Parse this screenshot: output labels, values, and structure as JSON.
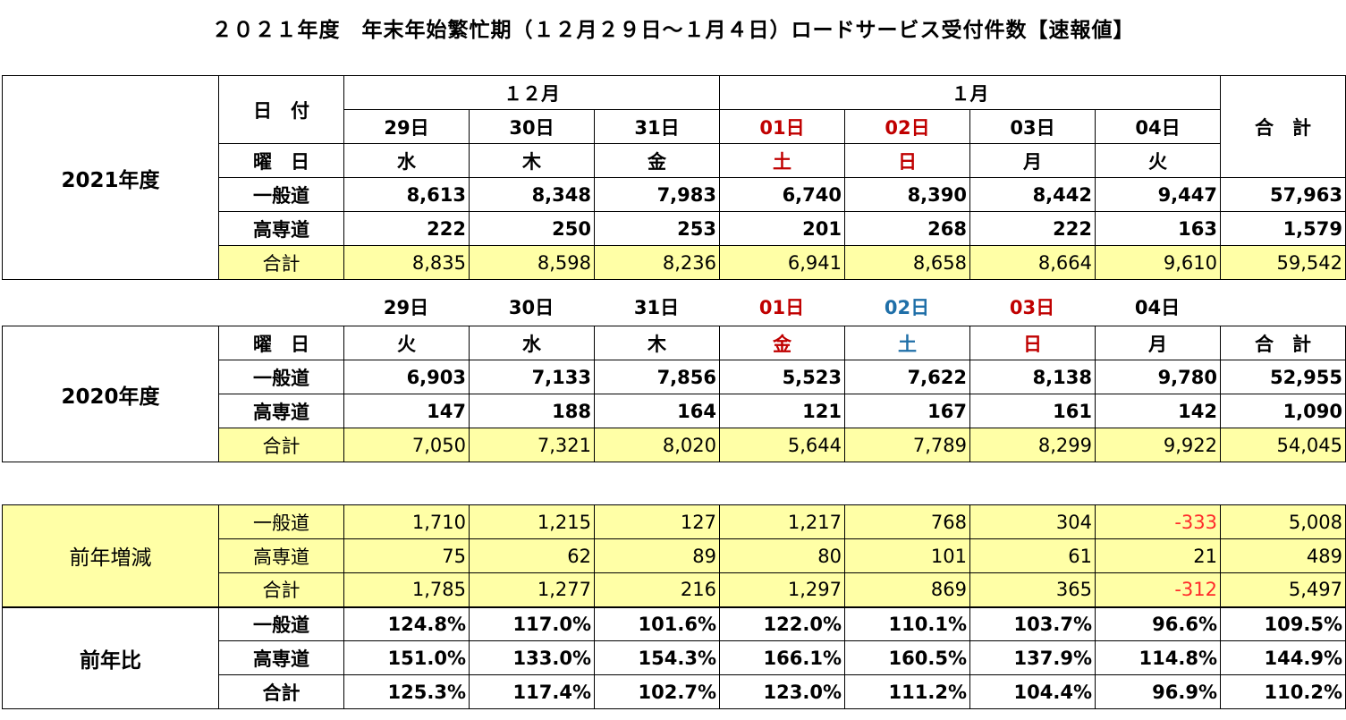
{
  "title": "２０２１年度　年末年始繁忙期（１２月２９日～１月４日）ロードサービス受付件数【速報値】",
  "colors": {
    "holiday_red": "#c00000",
    "saturday_blue": "#1f6fa8",
    "negative_red": "#ff2a2a",
    "highlight_yellow": "#ffffa6"
  },
  "labels": {
    "date": "日　付",
    "weekday": "曜　日",
    "general": "一般道",
    "highway": "高専道",
    "total": "合計",
    "grand_total": "合　計",
    "dec": "１２月",
    "jan": "１月"
  },
  "fy2021": {
    "label": "2021年度",
    "days": [
      "29日",
      "30日",
      "31日",
      "01日",
      "02日",
      "03日",
      "04日"
    ],
    "weekdays": [
      "水",
      "木",
      "金",
      "土",
      "日",
      "月",
      "火"
    ],
    "general": [
      "8,613",
      "8,348",
      "7,983",
      "6,740",
      "8,390",
      "8,442",
      "9,447",
      "57,963"
    ],
    "highway": [
      "222",
      "250",
      "253",
      "201",
      "268",
      "222",
      "163",
      "1,579"
    ],
    "total": [
      "8,835",
      "8,598",
      "8,236",
      "6,941",
      "8,658",
      "8,664",
      "9,610",
      "59,542"
    ]
  },
  "fy2020": {
    "label": "2020年度",
    "days": [
      "29日",
      "30日",
      "31日",
      "01日",
      "02日",
      "03日",
      "04日"
    ],
    "weekdays": [
      "火",
      "水",
      "木",
      "金",
      "土",
      "日",
      "月"
    ],
    "general": [
      "6,903",
      "7,133",
      "7,856",
      "5,523",
      "7,622",
      "8,138",
      "9,780",
      "52,955"
    ],
    "highway": [
      "147",
      "188",
      "164",
      "121",
      "167",
      "161",
      "142",
      "1,090"
    ],
    "total": [
      "7,050",
      "7,321",
      "8,020",
      "5,644",
      "7,789",
      "8,299",
      "9,922",
      "54,045"
    ]
  },
  "diff": {
    "label": "前年増減",
    "general": [
      "1,710",
      "1,215",
      "127",
      "1,217",
      "768",
      "304",
      "-333",
      "5,008"
    ],
    "highway": [
      "75",
      "62",
      "89",
      "80",
      "101",
      "61",
      "21",
      "489"
    ],
    "total": [
      "1,785",
      "1,277",
      "216",
      "1,297",
      "869",
      "365",
      "-312",
      "5,497"
    ]
  },
  "ratio": {
    "label": "前年比",
    "general": [
      "124.8%",
      "117.0%",
      "101.6%",
      "122.0%",
      "110.1%",
      "103.7%",
      "96.6%",
      "109.5%"
    ],
    "highway": [
      "151.0%",
      "133.0%",
      "154.3%",
      "166.1%",
      "160.5%",
      "137.9%",
      "114.8%",
      "144.9%"
    ],
    "total": [
      "125.3%",
      "117.4%",
      "102.7%",
      "123.0%",
      "111.2%",
      "104.4%",
      "96.9%",
      "110.2%"
    ]
  }
}
